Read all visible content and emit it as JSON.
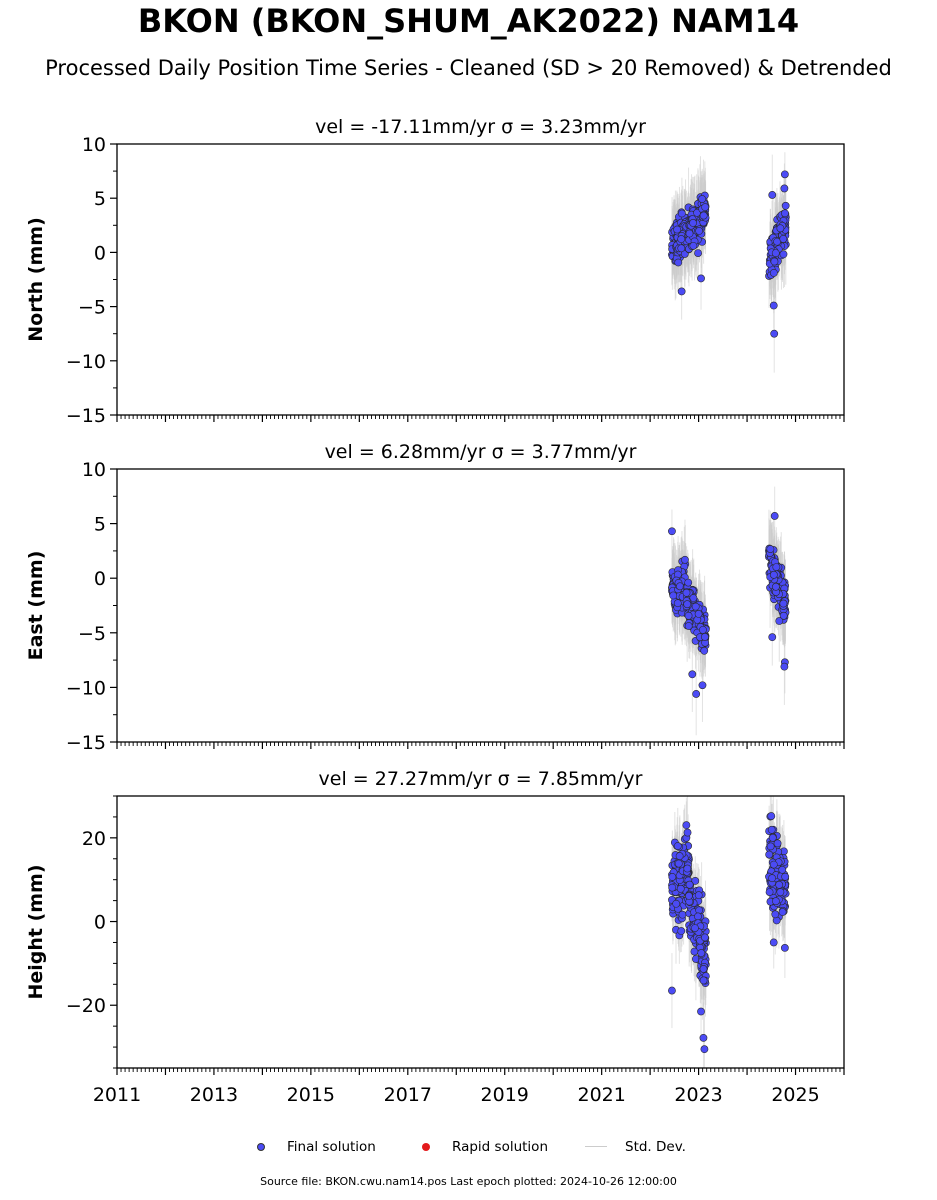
{
  "header": {
    "title": "BKON (BKON_SHUM_AK2022) NAM14",
    "subtitle": "Processed Daily Position Time Series - Cleaned (SD > 20 Removed) & Detrended"
  },
  "legend": {
    "final_label": "Final solution",
    "rapid_label": "Rapid solution",
    "std_label": "Std. Dev.",
    "final_color": "#4b4bf5",
    "rapid_color": "#e31a1c",
    "std_color": "#cccccc"
  },
  "footer": {
    "source": "Source file: BKON.cwu.nam14.pos  Last epoch plotted: 2024-10-26 12:00:00"
  },
  "chart_data": [
    {
      "type": "scatter",
      "panel": "north",
      "title": "vel = -17.11mm/yr   σ = 3.23mm/yr",
      "ylabel": "North (mm)",
      "xlim": [
        2011.0,
        2026.0
      ],
      "ylim": [
        -15,
        10
      ],
      "yticks": [
        -15,
        -10,
        -5,
        0,
        5,
        10
      ],
      "xticks": [
        2011,
        2013,
        2015,
        2017,
        2019,
        2021,
        2023,
        2025
      ],
      "show_x_tick_labels": false,
      "grid": false,
      "segments": [
        {
          "x": [
            2022.45,
            2022.55
          ],
          "y": [
            0.5,
            1.0
          ]
        },
        {
          "x": [
            2022.55,
            2022.8
          ],
          "y": [
            1.0,
            2.0
          ]
        },
        {
          "x": [
            2022.8,
            2023.15
          ],
          "y": [
            2.0,
            3.8
          ]
        },
        {
          "x": [
            2024.45,
            2024.8
          ],
          "y": [
            -1.0,
            2.5
          ]
        }
      ],
      "outliers": [
        {
          "x": 2022.65,
          "y": -3.6
        },
        {
          "x": 2023.05,
          "y": -2.4
        },
        {
          "x": 2024.52,
          "y": 5.3
        },
        {
          "x": 2024.55,
          "y": -4.9
        },
        {
          "x": 2024.56,
          "y": -7.5
        },
        {
          "x": 2024.78,
          "y": 7.2
        },
        {
          "x": 2024.77,
          "y": 5.9
        }
      ]
    },
    {
      "type": "scatter",
      "panel": "east",
      "title": "vel = 6.28mm/yr   σ = 3.77mm/yr",
      "ylabel": "East (mm)",
      "xlim": [
        2011.0,
        2026.0
      ],
      "ylim": [
        -15,
        10
      ],
      "yticks": [
        -15,
        -10,
        -5,
        0,
        5,
        10
      ],
      "xticks": [
        2011,
        2013,
        2015,
        2017,
        2019,
        2021,
        2023,
        2025
      ],
      "show_x_tick_labels": false,
      "grid": false,
      "segments": [
        {
          "x": [
            2022.45,
            2022.75
          ],
          "y": [
            -0.5,
            -1.0
          ]
        },
        {
          "x": [
            2022.75,
            2023.15
          ],
          "y": [
            -2.0,
            -5.0
          ]
        },
        {
          "x": [
            2024.45,
            2024.8
          ],
          "y": [
            2.0,
            -2.5
          ]
        }
      ],
      "outliers": [
        {
          "x": 2022.45,
          "y": 4.3
        },
        {
          "x": 2022.87,
          "y": -8.8
        },
        {
          "x": 2022.95,
          "y": -10.6
        },
        {
          "x": 2023.08,
          "y": -9.8
        },
        {
          "x": 2024.52,
          "y": -5.4
        },
        {
          "x": 2024.57,
          "y": 5.7
        },
        {
          "x": 2024.78,
          "y": -7.7
        },
        {
          "x": 2024.77,
          "y": -8.1
        }
      ]
    },
    {
      "type": "scatter",
      "panel": "height",
      "title": "vel = 27.27mm/yr   σ = 7.85mm/yr",
      "ylabel": "Height (mm)",
      "xlim": [
        2011.0,
        2026.0
      ],
      "ylim": [
        -35,
        30
      ],
      "yticks": [
        -20,
        0,
        20
      ],
      "xticks": [
        2011,
        2013,
        2015,
        2017,
        2019,
        2021,
        2023,
        2025
      ],
      "xtick_labels": [
        "2011",
        "2013",
        "2015",
        "2017",
        "2019",
        "2021",
        "2023",
        "2025"
      ],
      "show_x_tick_labels": true,
      "grid": false,
      "segments": [
        {
          "x": [
            2022.45,
            2022.8
          ],
          "y": [
            8.0,
            12.0
          ]
        },
        {
          "x": [
            2022.8,
            2023.15
          ],
          "y": [
            5.0,
            -8.0
          ]
        },
        {
          "x": [
            2024.45,
            2024.8
          ],
          "y": [
            14.0,
            8.0
          ]
        }
      ],
      "outliers": [
        {
          "x": 2022.45,
          "y": -16.5
        },
        {
          "x": 2023.1,
          "y": -27.8
        },
        {
          "x": 2023.12,
          "y": -30.5
        },
        {
          "x": 2023.05,
          "y": -21.5
        },
        {
          "x": 2024.5,
          "y": 25.2
        },
        {
          "x": 2024.55,
          "y": -5.0
        },
        {
          "x": 2024.78,
          "y": -6.3
        }
      ]
    }
  ]
}
